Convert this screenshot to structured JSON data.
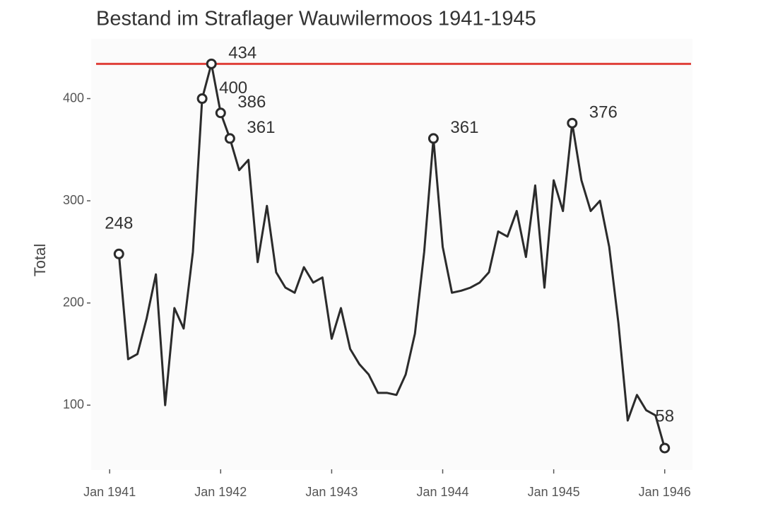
{
  "chart_data": {
    "type": "line",
    "title": "Bestand im Straflager Wauwilermoos 1941-1945",
    "y_label": "Total",
    "x": [
      "1941-02",
      "1941-03",
      "1941-04",
      "1941-05",
      "1941-06",
      "1941-07",
      "1941-08",
      "1941-09",
      "1941-10",
      "1941-11",
      "1941-12",
      "1942-01",
      "1942-02",
      "1942-03",
      "1942-04",
      "1942-05",
      "1942-06",
      "1942-07",
      "1942-08",
      "1942-09",
      "1942-10",
      "1942-11",
      "1942-12",
      "1943-01",
      "1943-02",
      "1943-03",
      "1943-04",
      "1943-05",
      "1943-06",
      "1943-07",
      "1943-08",
      "1943-09",
      "1943-10",
      "1943-11",
      "1943-12",
      "1944-01",
      "1944-02",
      "1944-03",
      "1944-04",
      "1944-05",
      "1944-06",
      "1944-07",
      "1944-08",
      "1944-09",
      "1944-10",
      "1944-11",
      "1944-12",
      "1945-01",
      "1945-02",
      "1945-03",
      "1945-04",
      "1945-05",
      "1945-06",
      "1945-07",
      "1945-08",
      "1945-09",
      "1945-10",
      "1945-11",
      "1945-12",
      "1946-01"
    ],
    "series": [
      {
        "name": "Total",
        "color": "#2b2b2b",
        "values": [
          248,
          145,
          150,
          185,
          228,
          100,
          195,
          175,
          250,
          400,
          434,
          386,
          361,
          330,
          340,
          240,
          295,
          230,
          215,
          210,
          235,
          220,
          225,
          165,
          195,
          155,
          140,
          130,
          112,
          112,
          110,
          130,
          170,
          250,
          361,
          255,
          210,
          212,
          215,
          220,
          230,
          270,
          265,
          290,
          245,
          315,
          215,
          320,
          290,
          376,
          320,
          290,
          300,
          255,
          180,
          85,
          110,
          95,
          90,
          58
        ]
      }
    ],
    "labeled": [
      0,
      9,
      10,
      11,
      12,
      34,
      49,
      59
    ],
    "hline": {
      "value": 434,
      "color": "#e0403a"
    },
    "xlim": [
      "1940-11",
      "1946-04"
    ],
    "xticks": [
      {
        "value": "1941-01",
        "label": "Jan 1941"
      },
      {
        "value": "1942-01",
        "label": "Jan 1942"
      },
      {
        "value": "1943-01",
        "label": "Jan 1943"
      },
      {
        "value": "1944-01",
        "label": "Jan 1944"
      },
      {
        "value": "1945-01",
        "label": "Jan 1945"
      },
      {
        "value": "1946-01",
        "label": "Jan 1946"
      }
    ],
    "ylim": [
      40,
      455
    ],
    "yticks": [
      100,
      200,
      300,
      400
    ],
    "grid": false
  }
}
